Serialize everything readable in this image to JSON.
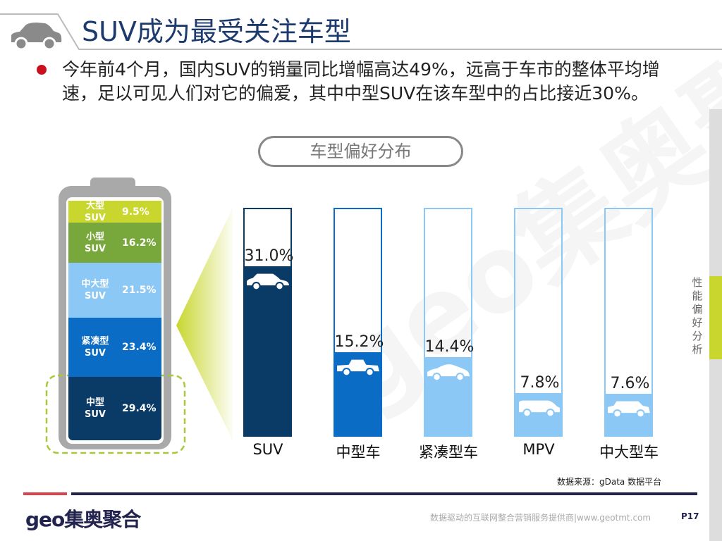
{
  "header": {
    "title": "SUV成为最受关注车型",
    "icon": "car-icon"
  },
  "bullet": {
    "text": "今年前4个月，国内SUV的销量同比增幅高达49%，远高于车市的整体平均增速，足以可见人们对它的偏爱，其中中型SUV在该车型中的占比接近30%。"
  },
  "section_pill": "车型偏好分布",
  "side_tab": "性能偏好分析",
  "battery": {
    "segments": [
      {
        "label": "大型",
        "sub": "SUV",
        "value": "9.5%",
        "color": "#c8d62e"
      },
      {
        "label": "小型",
        "sub": "SUV",
        "value": "16.2%",
        "color": "#78a83c"
      },
      {
        "label": "中大型",
        "sub": "SUV",
        "value": "21.5%",
        "color": "#8cc8f5"
      },
      {
        "label": "紧凑型",
        "sub": "SUV",
        "value": "23.4%",
        "color": "#0a6cc4"
      },
      {
        "label": "中型",
        "sub": "SUV",
        "value": "29.4%",
        "color": "#0a3a66"
      }
    ]
  },
  "chart_data": {
    "type": "bar",
    "categories": [
      "SUV",
      "中型车",
      "紧凑型车",
      "MPV",
      "中大型车"
    ],
    "values": [
      31.0,
      15.2,
      14.4,
      7.8,
      7.6
    ],
    "labels": [
      "31.0%",
      "15.2%",
      "14.4%",
      "7.8%",
      "7.6%"
    ],
    "colors": [
      "#0a3a66",
      "#0a6cc4",
      "#8cc8f5",
      "#8cc8f5",
      "#8cc8f5"
    ],
    "ylim": [
      0,
      42
    ]
  },
  "source": "数据来源：gData  数据平台",
  "footer": {
    "logo": "geo集奥聚合",
    "tagline": "数据驱动的互联网整合营销服务提供商|www.geotmt.com",
    "page": "P17"
  }
}
